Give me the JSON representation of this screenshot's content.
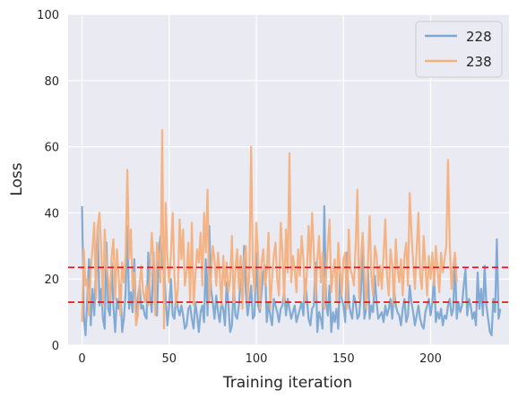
{
  "chart_data": {
    "type": "line",
    "title": "",
    "xlabel": "Training iteration",
    "ylabel": "Loss",
    "xlim": [
      -8,
      245
    ],
    "ylim": [
      0,
      100
    ],
    "x_ticks": [
      0,
      50,
      100,
      150,
      200
    ],
    "y_ticks": [
      0,
      20,
      40,
      60,
      80,
      100
    ],
    "grid": true,
    "legend_position": "top-right",
    "background_color": "#eaeaf2",
    "series": [
      {
        "name": "228",
        "color": "#7ba7d2",
        "x_start": 0,
        "x_step": 1,
        "values": [
          42,
          9,
          3,
          14,
          26,
          6,
          17,
          9,
          24,
          36,
          12,
          17,
          8,
          5,
          31,
          11,
          9,
          25,
          12,
          4,
          14,
          11,
          18,
          4,
          8,
          16,
          36,
          11,
          16,
          10,
          26,
          7,
          14,
          18,
          11,
          12,
          9,
          8,
          28,
          15,
          10,
          28,
          12,
          9,
          28,
          33,
          23,
          24,
          14,
          6,
          12,
          20,
          9,
          8,
          15,
          11,
          9,
          12,
          9,
          5,
          6,
          11,
          12,
          8,
          5,
          13,
          9,
          4,
          10,
          12,
          7,
          26,
          9,
          36,
          17,
          13,
          8,
          15,
          10,
          7,
          13,
          11,
          6,
          19,
          12,
          4,
          6,
          18,
          9,
          8,
          12,
          20,
          16,
          30,
          16,
          9,
          13,
          18,
          8,
          9,
          28,
          12,
          10,
          16,
          22,
          24,
          7,
          13,
          9,
          6,
          14,
          12,
          10,
          7,
          11,
          12,
          16,
          9,
          14,
          11,
          8,
          10,
          12,
          7,
          9,
          11,
          13,
          9,
          20,
          14,
          8,
          6,
          11,
          12,
          25,
          4,
          10,
          8,
          5,
          42,
          13,
          9,
          18,
          4,
          10,
          7,
          11,
          5,
          22,
          14,
          12,
          7,
          28,
          13,
          10,
          8,
          15,
          13,
          8,
          9,
          16,
          30,
          8,
          11,
          24,
          8,
          12,
          10,
          21,
          13,
          8,
          9,
          10,
          7,
          12,
          9,
          11,
          14,
          8,
          17,
          12,
          10,
          9,
          6,
          11,
          14,
          7,
          9,
          18,
          13,
          10,
          6,
          9,
          12,
          8,
          6,
          5,
          10,
          12,
          14,
          9,
          13,
          21,
          7,
          10,
          8,
          11,
          6,
          9,
          8,
          12,
          14,
          9,
          11,
          26,
          8,
          13,
          10,
          12,
          18,
          23,
          9,
          14,
          12,
          8,
          10,
          6,
          22,
          11,
          17,
          9,
          24,
          12,
          8,
          4,
          3,
          14,
          10,
          32,
          8,
          11
        ]
      },
      {
        "name": "238",
        "color": "#f4b07d",
        "x_start": 0,
        "x_step": 1,
        "values": [
          7,
          29,
          18,
          20,
          9,
          23,
          29,
          37,
          14,
          36,
          40,
          29,
          12,
          35,
          24,
          20,
          13,
          27,
          32,
          14,
          29,
          21,
          9,
          25,
          19,
          27,
          53,
          26,
          35,
          17,
          22,
          6,
          9,
          18,
          24,
          16,
          13,
          18,
          12,
          21,
          34,
          26,
          9,
          31,
          27,
          19,
          65,
          5,
          43,
          26,
          19,
          28,
          40,
          21,
          12,
          17,
          38,
          26,
          35,
          18,
          22,
          31,
          13,
          37,
          12,
          21,
          29,
          25,
          34,
          18,
          40,
          28,
          47,
          13,
          21,
          30,
          26,
          18,
          28,
          22,
          12,
          27,
          18,
          25,
          16,
          20,
          33,
          13,
          23,
          29,
          17,
          27,
          11,
          26,
          30,
          14,
          22,
          60,
          23,
          16,
          37,
          27,
          11,
          25,
          29,
          18,
          22,
          34,
          11,
          20,
          27,
          31,
          20,
          15,
          37,
          28,
          13,
          35,
          22,
          58,
          19,
          27,
          23,
          16,
          29,
          21,
          33,
          26,
          13,
          22,
          36,
          24,
          40,
          28,
          14,
          26,
          33,
          19,
          28,
          11,
          21,
          30,
          38,
          16,
          22,
          26,
          13,
          31,
          23,
          15,
          26,
          28,
          11,
          35,
          23,
          21,
          18,
          30,
          47,
          14,
          26,
          34,
          22,
          11,
          24,
          39,
          21,
          15,
          30,
          27,
          18,
          24,
          17,
          27,
          38,
          21,
          15,
          29,
          24,
          12,
          32,
          23,
          19,
          26,
          15,
          27,
          31,
          18,
          46,
          34,
          25,
          17,
          29,
          40,
          21,
          17,
          33,
          24,
          15,
          27,
          20,
          28,
          18,
          30,
          23,
          16,
          28,
          22,
          26,
          30,
          56,
          30,
          17,
          24,
          28,
          19
        ]
      }
    ],
    "reference_lines": [
      {
        "axis": "y",
        "value": 13,
        "color": "#e41a1c",
        "style": "dashed"
      },
      {
        "axis": "y",
        "value": 23.5,
        "color": "#e41a1c",
        "style": "dashed"
      }
    ]
  }
}
